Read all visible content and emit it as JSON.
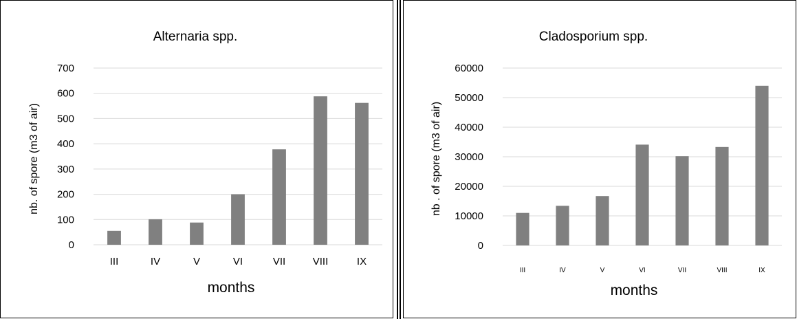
{
  "chart_data": [
    {
      "type": "bar",
      "title": "Alternaria spp.",
      "xlabel": "months",
      "ylabel": "nb. of spore (m3 of air)",
      "categories": [
        "III",
        "IV",
        "V",
        "VI",
        "VII",
        "VIII",
        "IX"
      ],
      "values": [
        55,
        101,
        88,
        200,
        378,
        588,
        562
      ],
      "yticks": [
        "0",
        "100",
        "200",
        "300",
        "400",
        "500",
        "600",
        "700"
      ],
      "ylim": [
        0,
        700
      ],
      "grid": true,
      "color": "#808080"
    },
    {
      "type": "bar",
      "title": "Cladosporium spp.",
      "xlabel": "months",
      "ylabel": "nb . of spore (m3 of air)",
      "categories": [
        "III",
        "IV",
        "V",
        "VI",
        "VII",
        "VIII",
        "IX"
      ],
      "values": [
        11000,
        13400,
        16700,
        34100,
        30200,
        33300,
        54000
      ],
      "yticks": [
        "0",
        "10000",
        "20000",
        "30000",
        "40000",
        "50000",
        "60000"
      ],
      "ylim": [
        0,
        60000
      ],
      "grid": true,
      "color": "#808080"
    }
  ]
}
